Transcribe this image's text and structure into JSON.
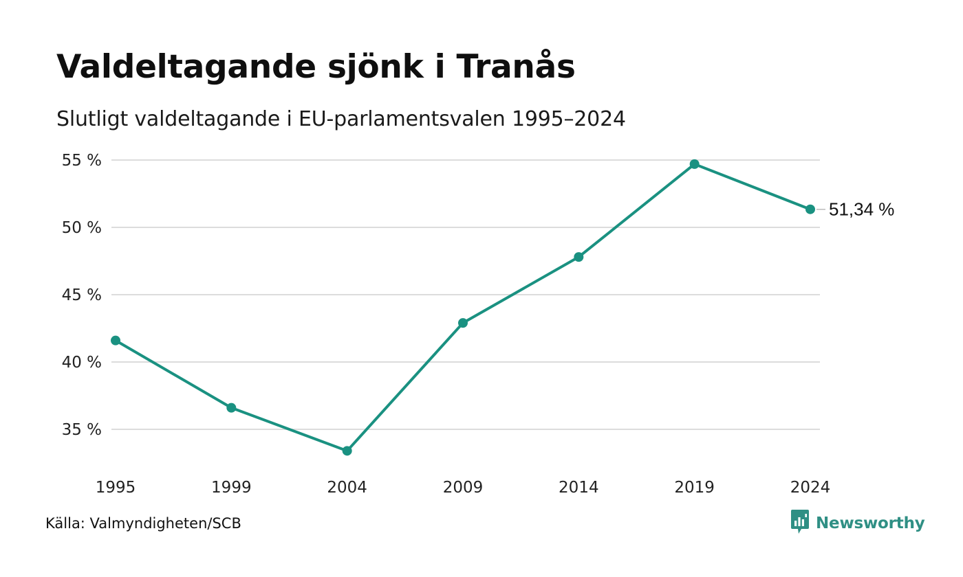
{
  "header": {
    "title": "Valdeltagande sjönk i Tranås",
    "subtitle": "Slutligt valdeltagande i EU-parlamentsvalen 1995–2024"
  },
  "footer": {
    "source": "Källa: Valmyndigheten/SCB",
    "brand": "Newsworthy",
    "brand_icon": "newsworthy-logo-icon"
  },
  "colors": {
    "line": "#1a9181",
    "grid": "#dcdcdc",
    "brand": "#2f8f84"
  },
  "chart_data": {
    "type": "line",
    "x": [
      "1995",
      "1999",
      "2004",
      "2009",
      "2014",
      "2019",
      "2024"
    ],
    "series": [
      {
        "values": [
          41.6,
          36.6,
          33.4,
          42.9,
          47.8,
          54.7,
          51.34
        ]
      }
    ],
    "yticks": [
      35,
      40,
      45,
      50,
      55
    ],
    "ytick_labels": [
      "35 %",
      "40 %",
      "45 %",
      "50 %",
      "55 %"
    ],
    "ylim": [
      32,
      55
    ],
    "end_label": "51,34 %",
    "grid": true,
    "legend": "none"
  }
}
